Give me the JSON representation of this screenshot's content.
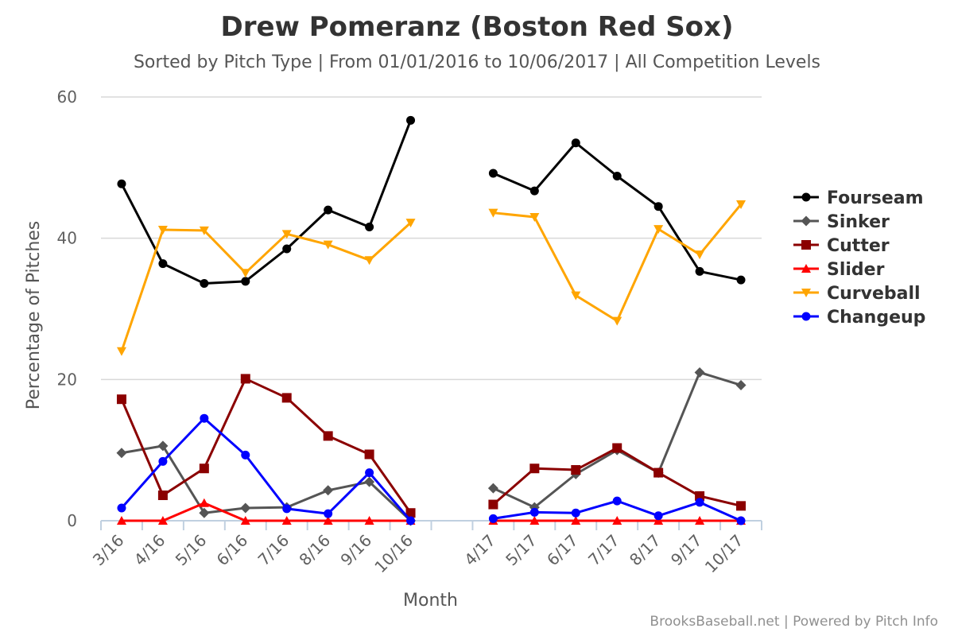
{
  "title": "Drew Pomeranz (Boston Red Sox)",
  "subtitle": "Sorted by Pitch Type | From 01/01/2016 to 10/06/2017 | All Competition Levels",
  "credits": "BrooksBaseball.net | Powered by Pitch Info",
  "chart_data": {
    "type": "line",
    "title": "Drew Pomeranz (Boston Red Sox)",
    "xlabel": "Month",
    "ylabel": "Percentage of Pitches",
    "ylim": [
      0,
      60
    ],
    "yticks": [
      0,
      20,
      40,
      60
    ],
    "grid": true,
    "legend_position": "right",
    "categories": [
      "3/16",
      "4/16",
      "5/16",
      "6/16",
      "7/16",
      "8/16",
      "9/16",
      "10/16",
      "",
      "4/17",
      "5/17",
      "6/17",
      "7/17",
      "8/17",
      "9/17",
      "10/17"
    ],
    "series": [
      {
        "name": "Fourseam",
        "color": "#000000",
        "marker": "circle",
        "values": [
          47.7,
          36.4,
          33.6,
          33.9,
          38.5,
          44.0,
          41.6,
          56.7,
          null,
          49.2,
          46.7,
          53.5,
          48.8,
          44.5,
          35.3,
          34.1
        ]
      },
      {
        "name": "Sinker",
        "color": "#555555",
        "marker": "diamond",
        "values": [
          9.6,
          10.6,
          1.1,
          1.8,
          1.9,
          4.3,
          5.5,
          0.0,
          null,
          4.6,
          1.9,
          6.6,
          10.0,
          6.8,
          21.0,
          19.2
        ]
      },
      {
        "name": "Cutter",
        "color": "#8b0000",
        "marker": "square",
        "values": [
          17.2,
          3.6,
          7.4,
          20.1,
          17.4,
          12.0,
          9.4,
          1.1,
          null,
          2.3,
          7.4,
          7.2,
          10.3,
          6.8,
          3.5,
          2.1
        ]
      },
      {
        "name": "Slider",
        "color": "#ff0000",
        "marker": "triangle",
        "values": [
          0.0,
          0.0,
          2.5,
          0.0,
          0.0,
          0.0,
          0.0,
          0.0,
          null,
          0.0,
          0.0,
          0.0,
          0.0,
          0.0,
          0.0,
          0.0
        ]
      },
      {
        "name": "Curveball",
        "color": "#ffa500",
        "marker": "triangle-down",
        "values": [
          24.0,
          41.2,
          41.1,
          35.1,
          40.6,
          39.1,
          36.9,
          42.2,
          null,
          43.6,
          43.0,
          31.9,
          28.3,
          41.3,
          37.7,
          44.8
        ]
      },
      {
        "name": "Changeup",
        "color": "#0000ff",
        "marker": "circle",
        "values": [
          1.8,
          8.4,
          14.5,
          9.3,
          1.7,
          1.0,
          6.8,
          0.0,
          null,
          0.3,
          1.2,
          1.1,
          2.8,
          0.7,
          2.6,
          0.0
        ]
      }
    ]
  }
}
